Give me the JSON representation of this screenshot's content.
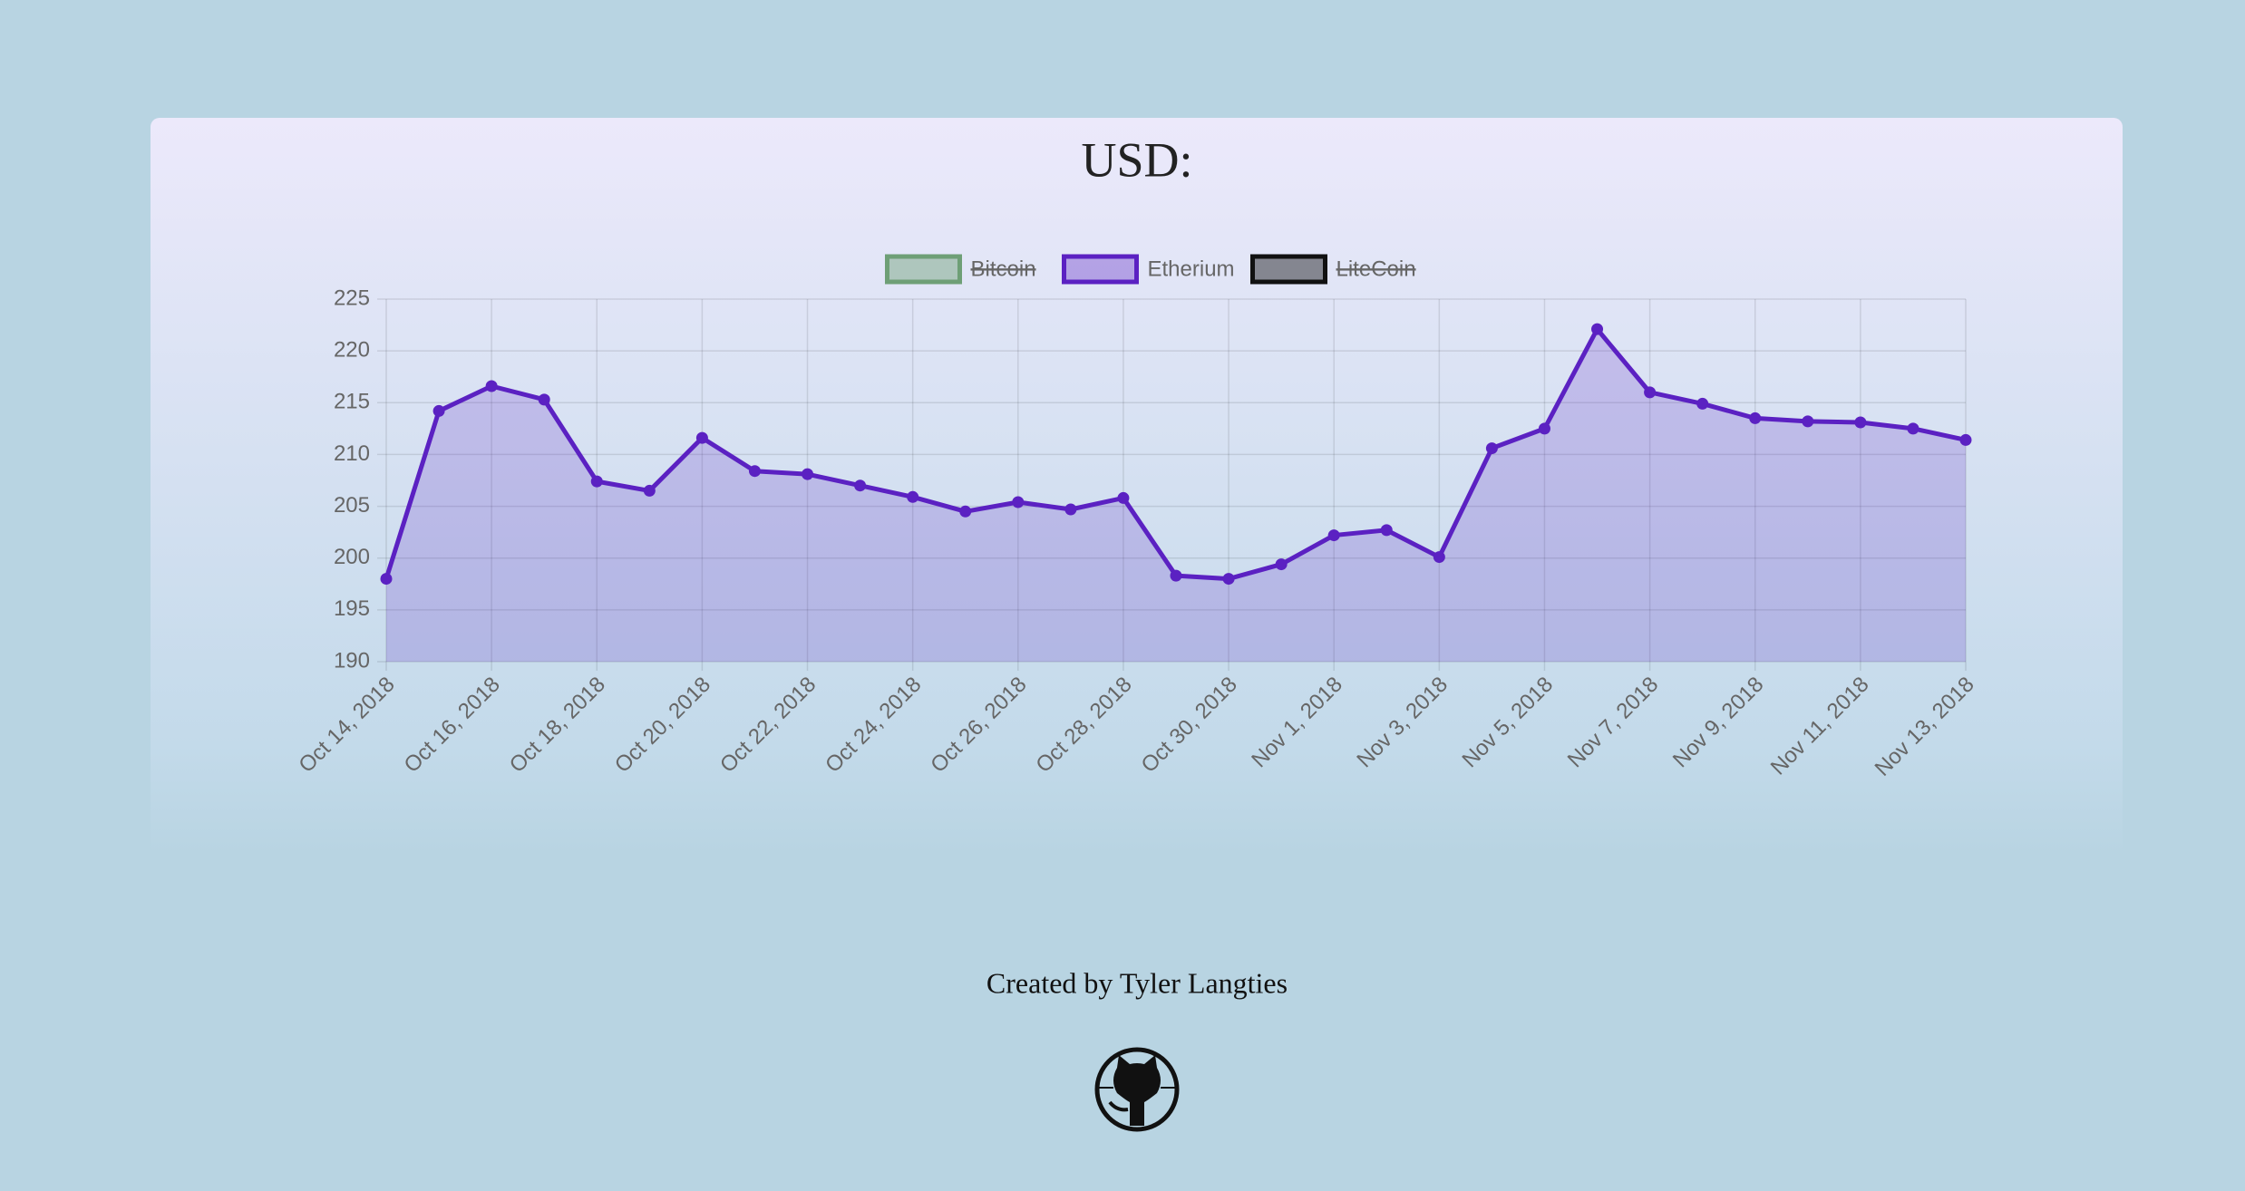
{
  "chart_data": {
    "type": "line",
    "title": "USD:",
    "categories": [
      "Oct 14, 2018",
      null,
      "Oct 16, 2018",
      null,
      "Oct 18, 2018",
      null,
      "Oct 20, 2018",
      null,
      "Oct 22, 2018",
      null,
      "Oct 24, 2018",
      null,
      "Oct 26, 2018",
      null,
      "Oct 28, 2018",
      null,
      "Oct 30, 2018",
      null,
      "Nov 1, 2018",
      null,
      "Nov 3, 2018",
      null,
      "Nov 5, 2018",
      null,
      "Nov 7, 2018",
      null,
      "Nov 9, 2018",
      null,
      "Nov 11, 2018",
      null,
      "Nov 13, 2018"
    ],
    "series": [
      {
        "name": "Bitcoin",
        "color": "#6e9f76",
        "hidden": true
      },
      {
        "name": "Etherium",
        "color": "#5b21c2",
        "values": [
          198.0,
          214.2,
          216.6,
          215.3,
          207.4,
          206.5,
          211.6,
          208.4,
          208.1,
          207.0,
          205.9,
          204.5,
          205.4,
          204.7,
          205.8,
          198.3,
          198.0,
          199.4,
          202.2,
          202.7,
          200.1,
          210.6,
          212.5,
          222.1,
          216.0,
          214.9,
          213.5,
          213.2,
          213.1,
          212.5,
          211.4
        ]
      },
      {
        "name": "LiteCoin",
        "color": "#111111",
        "hidden": true
      }
    ],
    "ylim": [
      190,
      225
    ],
    "yticks": [
      190,
      195,
      200,
      205,
      210,
      215,
      220,
      225
    ],
    "grid": true,
    "legend": "top",
    "footer": "Created by Tyler Langties"
  }
}
